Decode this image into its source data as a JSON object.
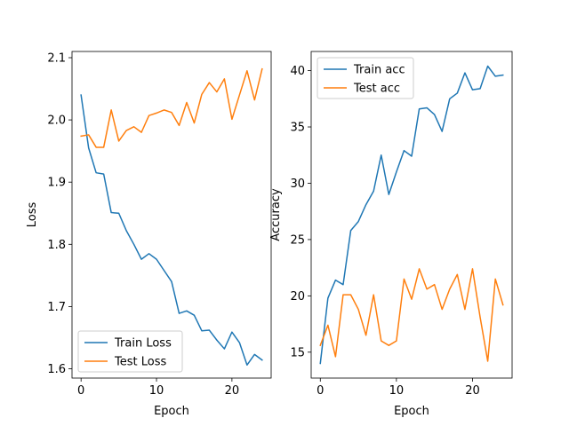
{
  "chart_data": [
    {
      "type": "line",
      "xlabel": "Epoch",
      "ylabel": "Loss",
      "xlim": [
        -1.2,
        25.2
      ],
      "ylim": [
        1.585,
        2.11
      ],
      "xticks": [
        0,
        10,
        20
      ],
      "xtick_labels": [
        "0",
        "10",
        "20"
      ],
      "yticks": [
        1.6,
        1.7,
        1.8,
        1.9,
        2.0,
        2.1
      ],
      "ytick_labels": [
        "1.6",
        "1.7",
        "1.8",
        "1.9",
        "2.0",
        "2.1"
      ],
      "legend_loc": "lower-left",
      "grid": false,
      "x": [
        0,
        1,
        2,
        3,
        4,
        5,
        6,
        7,
        8,
        9,
        10,
        11,
        12,
        13,
        14,
        15,
        16,
        17,
        18,
        19,
        20,
        21,
        22,
        23,
        24
      ],
      "series": [
        {
          "name": "Train Loss",
          "color": "#1f77b4",
          "values": [
            2.04,
            1.955,
            1.915,
            1.913,
            1.851,
            1.85,
            1.822,
            1.8,
            1.776,
            1.785,
            1.776,
            1.758,
            1.74,
            1.689,
            1.693,
            1.686,
            1.661,
            1.662,
            1.646,
            1.632,
            1.659,
            1.642,
            1.606,
            1.623,
            1.614
          ]
        },
        {
          "name": "Test Loss",
          "color": "#ff7f0e",
          "values": [
            1.974,
            1.976,
            1.956,
            1.956,
            2.016,
            1.966,
            1.983,
            1.989,
            1.98,
            2.007,
            2.011,
            2.016,
            2.012,
            1.991,
            2.028,
            1.995,
            2.041,
            2.06,
            2.045,
            2.066,
            2.001,
            2.04,
            2.079,
            2.032,
            2.082
          ]
        }
      ]
    },
    {
      "type": "line",
      "xlabel": "Epoch",
      "ylabel": "Accuracy",
      "xlim": [
        -1.2,
        25.2
      ],
      "ylim": [
        12.7,
        41.7
      ],
      "xticks": [
        0,
        10,
        20
      ],
      "xtick_labels": [
        "0",
        "10",
        "20"
      ],
      "yticks": [
        15,
        20,
        25,
        30,
        35,
        40
      ],
      "ytick_labels": [
        "15",
        "20",
        "25",
        "30",
        "35",
        "40"
      ],
      "legend_loc": "upper-left",
      "grid": false,
      "x": [
        0,
        1,
        2,
        3,
        4,
        5,
        6,
        7,
        8,
        9,
        10,
        11,
        12,
        13,
        14,
        15,
        16,
        17,
        18,
        19,
        20,
        21,
        22,
        23,
        24
      ],
      "series": [
        {
          "name": "Train acc",
          "color": "#1f77b4",
          "values": [
            14.0,
            19.8,
            21.4,
            21.0,
            25.8,
            26.6,
            28.1,
            29.3,
            32.5,
            29.0,
            31.0,
            32.9,
            32.4,
            36.6,
            36.7,
            36.1,
            34.6,
            37.5,
            38.0,
            39.8,
            38.3,
            38.4,
            40.4,
            39.5,
            39.6
          ]
        },
        {
          "name": "Test acc",
          "color": "#ff7f0e",
          "values": [
            15.6,
            17.4,
            14.6,
            20.1,
            20.1,
            18.8,
            16.5,
            20.1,
            16.0,
            15.6,
            16.0,
            21.5,
            19.7,
            22.4,
            20.6,
            21.0,
            18.8,
            20.6,
            21.9,
            18.8,
            22.4,
            18.1,
            14.2,
            21.5,
            19.2
          ]
        }
      ]
    }
  ]
}
